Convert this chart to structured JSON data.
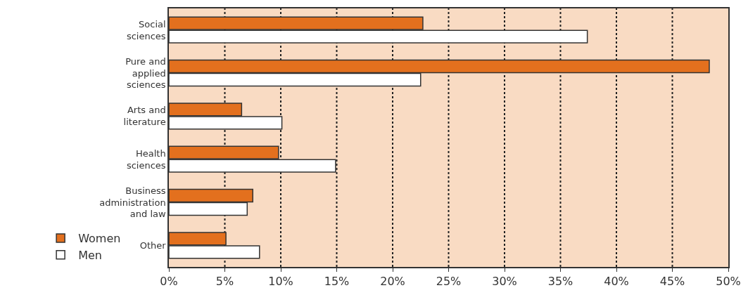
{
  "chart_data": {
    "type": "bar",
    "orientation": "horizontal",
    "categories": [
      "Social sciences",
      "Pure and applied sciences",
      "Arts and literature",
      "Health sciences",
      "Business administration and law",
      "Other"
    ],
    "series": [
      {
        "name": "Women",
        "color": "#e3701e",
        "values": [
          22.7,
          48.3,
          6.5,
          9.8,
          7.5,
          5.1
        ]
      },
      {
        "name": "Men",
        "color": "#ffffff",
        "values": [
          37.4,
          22.5,
          10.1,
          14.9,
          7.0,
          8.1
        ]
      }
    ],
    "xlim": [
      0,
      50
    ],
    "xticks": [
      {
        "value": 0,
        "label": "0%"
      },
      {
        "value": 5,
        "label": "5%"
      },
      {
        "value": 10,
        "label": "10%"
      },
      {
        "value": 15,
        "label": "15%"
      },
      {
        "value": 20,
        "label": "20%"
      },
      {
        "value": 25,
        "label": "25%"
      },
      {
        "value": 30,
        "label": "30%"
      },
      {
        "value": 35,
        "label": "35%"
      },
      {
        "value": 40,
        "label": "40%"
      },
      {
        "value": 45,
        "label": "45%"
      },
      {
        "value": 50,
        "label": "50%"
      }
    ],
    "grid": "x",
    "legend": "bottom left"
  }
}
